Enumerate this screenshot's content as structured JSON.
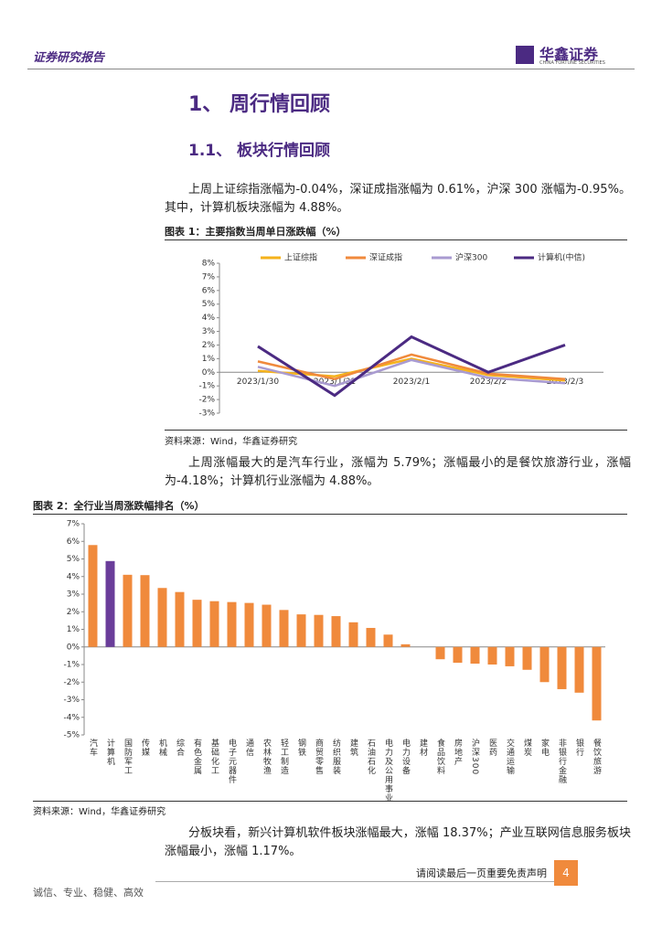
{
  "header": {
    "report_type": "证券研究报告",
    "logo": "华鑫证券",
    "logo_en": "CHINA FORTUNE SECURITIES"
  },
  "headings": [
    "1、 周行情回顾",
    "1.1、 板块行情回顾"
  ],
  "paragraphs": [
    "上周上证综指涨幅为-0.04%，深证成指涨幅为 0.61%，沪深 300 涨幅为-0.95%。其中，计算机板块涨幅为 4.88%。",
    "上周涨幅最大的是汽车行业，涨幅为 5.79%；涨幅最小的是餐饮旅游行业，涨幅为-4.18%；计算机行业涨幅为 4.88%。",
    "分板块看，新兴计算机软件板块涨幅最大，涨幅 18.37%；产业互联网信息服务板块涨幅最小，涨幅 1.17%。"
  ],
  "sources": [
    "资料来源：Wind，华鑫证券研究",
    "资料来源：Wind，华鑫证券研究"
  ],
  "chart_data": [
    {
      "type": "line",
      "title": "图表 1：主要指数当周单日涨跌幅（%）",
      "categories": [
        "2023/1/30",
        "2023/1/31",
        "2023/2/1",
        "2023/2/2",
        "2023/2/3"
      ],
      "series": [
        {
          "name": "上证综指",
          "color": "#f5b21b",
          "values": [
            0.1,
            -0.3,
            1.0,
            -0.2,
            -0.6
          ]
        },
        {
          "name": "深证成指",
          "color": "#f08a3c",
          "values": [
            0.8,
            -0.5,
            1.3,
            -0.1,
            -0.5
          ]
        },
        {
          "name": "沪深300",
          "color": "#a99bd1",
          "values": [
            0.4,
            -1.0,
            0.9,
            -0.4,
            -0.8
          ]
        },
        {
          "name": "计算机(中信)",
          "color": "#4b2a82",
          "values": [
            1.9,
            -1.7,
            2.6,
            0.0,
            2.0
          ]
        }
      ],
      "ylim": [
        -3,
        8
      ],
      "yticks": [
        {
          "value": -3,
          "label": "-3%"
        },
        {
          "value": -2,
          "label": "-2%"
        },
        {
          "value": -1,
          "label": "-1%"
        },
        {
          "value": 0,
          "label": "0%"
        },
        {
          "value": 1,
          "label": "1%"
        },
        {
          "value": 2,
          "label": "2%"
        },
        {
          "value": 3,
          "label": "3%"
        },
        {
          "value": 4,
          "label": "4%"
        },
        {
          "value": 5,
          "label": "5%"
        },
        {
          "value": 6,
          "label": "6%"
        },
        {
          "value": 7,
          "label": "7%"
        },
        {
          "value": 8,
          "label": "8%"
        }
      ],
      "legend": "top"
    },
    {
      "type": "bar",
      "title": "图表 2：全行业当周涨跌幅排名（%）",
      "categories": [
        "汽车",
        "计算机",
        "国防军工",
        "传媒",
        "机械",
        "综合",
        "有色金属",
        "基础化工",
        "电子元器件",
        "通信",
        "农林牧渔",
        "轻工制造",
        "钢铁",
        "商贸零售",
        "纺织服装",
        "建筑",
        "石油石化",
        "电力及公用事业",
        "电力设备",
        "建材",
        "食品饮料",
        "房地产",
        "沪深300",
        "医药",
        "交通运输",
        "煤炭",
        "家电",
        "非银行金融",
        "银行",
        "餐饮旅游"
      ],
      "values": [
        5.79,
        4.88,
        4.1,
        4.08,
        3.35,
        3.12,
        2.68,
        2.6,
        2.55,
        2.5,
        2.4,
        2.1,
        1.85,
        1.82,
        1.75,
        1.4,
        1.08,
        0.7,
        0.15,
        0,
        -0.7,
        -0.9,
        -0.95,
        -1.0,
        -1.1,
        -1.3,
        -2.0,
        -2.4,
        -2.6,
        -4.18
      ],
      "colors": [
        "#f08a3c",
        "#6a3d9a",
        "#f08a3c",
        "#f08a3c",
        "#f08a3c",
        "#f08a3c",
        "#f08a3c",
        "#f08a3c",
        "#f08a3c",
        "#f08a3c",
        "#f08a3c",
        "#f08a3c",
        "#f08a3c",
        "#f08a3c",
        "#f08a3c",
        "#f08a3c",
        "#f08a3c",
        "#f08a3c",
        "#f08a3c",
        "#f08a3c",
        "#f08a3c",
        "#f08a3c",
        "#f08a3c",
        "#f08a3c",
        "#f08a3c",
        "#f08a3c",
        "#f08a3c",
        "#f08a3c",
        "#f08a3c",
        "#f08a3c"
      ],
      "ylim": [
        -5,
        7
      ],
      "yticks": [
        {
          "value": -5,
          "label": "-5%"
        },
        {
          "value": -4,
          "label": "-4%"
        },
        {
          "value": -3,
          "label": "-3%"
        },
        {
          "value": -2,
          "label": "-2%"
        },
        {
          "value": -1,
          "label": "-1%"
        },
        {
          "value": 0,
          "label": "0%"
        },
        {
          "value": 1,
          "label": "1%"
        },
        {
          "value": 2,
          "label": "2%"
        },
        {
          "value": 3,
          "label": "3%"
        },
        {
          "value": 4,
          "label": "4%"
        },
        {
          "value": 5,
          "label": "5%"
        },
        {
          "value": 6,
          "label": "6%"
        },
        {
          "value": 7,
          "label": "7%"
        }
      ]
    }
  ],
  "footer": {
    "disclaimer": "请阅读最后一页重要免责声明",
    "page": "4",
    "motto": "诚信、专业、稳健、高效"
  }
}
